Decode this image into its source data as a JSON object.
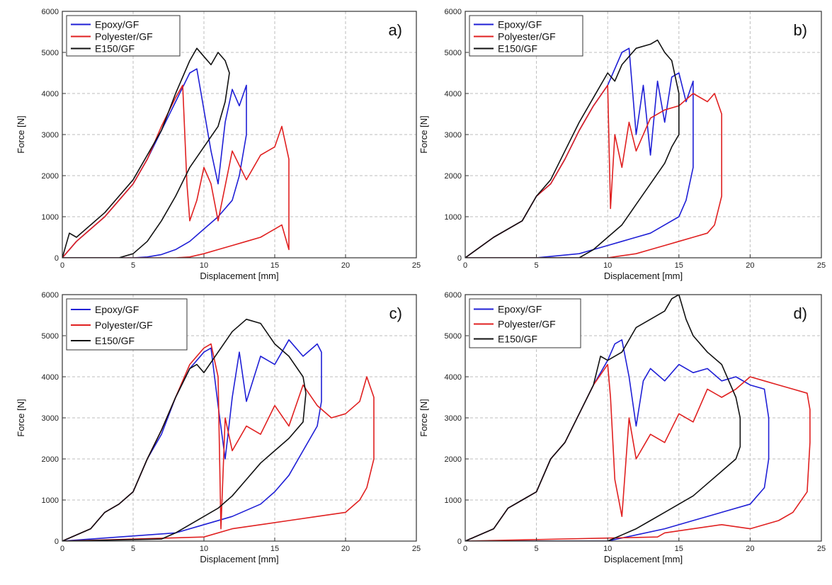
{
  "chart_data": [
    {
      "type": "line",
      "panel_label": "a)",
      "xlabel": "Displacement [mm]",
      "ylabel": "Force [N]",
      "xlim": [
        0,
        25
      ],
      "ylim": [
        0,
        6000
      ],
      "xticks": [
        "0",
        "5",
        "10",
        "15",
        "20",
        "25"
      ],
      "yticks": [
        "0",
        "1000",
        "2000",
        "3000",
        "4000",
        "5000",
        "6000"
      ],
      "grid": true,
      "legend_position": "top-left",
      "series": [
        {
          "name": "Epoxy/GF",
          "color": "#1f1fd6",
          "x": [
            0,
            1,
            2,
            3,
            4,
            5,
            6,
            7,
            8,
            9,
            9.5,
            10,
            10.5,
            11,
            11.5,
            12,
            12.5,
            13,
            13,
            12.5,
            12,
            11,
            10,
            9,
            8,
            7,
            6,
            5,
            4,
            3,
            2,
            0
          ],
          "y": [
            0,
            400,
            700,
            1000,
            1400,
            1800,
            2400,
            3100,
            3800,
            4500,
            4600,
            3600,
            2600,
            1800,
            3300,
            4100,
            3700,
            4200,
            3000,
            2000,
            1400,
            1000,
            700,
            400,
            200,
            80,
            20,
            0,
            0,
            0,
            0,
            0
          ]
        },
        {
          "name": "Polyester/GF",
          "color": "#e02020",
          "x": [
            0,
            1,
            2,
            3,
            4,
            5,
            6,
            7,
            8,
            8.5,
            8.8,
            9,
            9.5,
            10,
            10.5,
            11,
            12,
            13,
            14,
            15,
            15.5,
            16,
            16,
            15.5,
            15,
            14,
            13,
            12,
            11,
            10,
            9,
            8,
            0
          ],
          "y": [
            0,
            400,
            700,
            1000,
            1400,
            1800,
            2400,
            3200,
            3900,
            4200,
            1800,
            900,
            1400,
            2200,
            1800,
            900,
            2600,
            1900,
            2500,
            2700,
            3200,
            2400,
            200,
            800,
            700,
            500,
            400,
            300,
            200,
            100,
            20,
            0,
            0
          ]
        },
        {
          "name": "E150/GF",
          "color": "#111111",
          "x": [
            0,
            0.5,
            1,
            2,
            3,
            4,
            5,
            6,
            7,
            8,
            9,
            9.5,
            10,
            10.5,
            11,
            11.5,
            11.8,
            11.5,
            11,
            10,
            9,
            8,
            7,
            6,
            5,
            4,
            0
          ],
          "y": [
            0,
            600,
            500,
            800,
            1100,
            1500,
            1900,
            2500,
            3100,
            4000,
            4800,
            5100,
            4900,
            4700,
            5000,
            4800,
            4500,
            3800,
            3200,
            2700,
            2200,
            1500,
            900,
            400,
            100,
            0,
            0
          ]
        }
      ]
    },
    {
      "type": "line",
      "panel_label": "b)",
      "xlabel": "Displacement [mm]",
      "ylabel": "Force [N]",
      "xlim": [
        0,
        25
      ],
      "ylim": [
        0,
        6000
      ],
      "xticks": [
        "0",
        "5",
        "10",
        "15",
        "20",
        "25"
      ],
      "yticks": [
        "0",
        "1000",
        "2000",
        "3000",
        "4000",
        "5000",
        "6000"
      ],
      "grid": true,
      "legend_position": "top-left",
      "series": [
        {
          "name": "Epoxy/GF",
          "color": "#1f1fd6",
          "x": [
            0,
            2,
            4,
            5,
            6,
            7,
            8,
            9,
            10,
            11,
            11.5,
            12,
            12.5,
            13,
            13.5,
            14,
            14.5,
            15,
            15.5,
            16,
            16,
            15.5,
            15,
            14,
            13,
            12,
            11,
            10,
            9,
            8,
            5,
            0
          ],
          "y": [
            0,
            500,
            900,
            1500,
            1800,
            2400,
            3100,
            3700,
            4200,
            5000,
            5100,
            3000,
            4200,
            2500,
            4300,
            3300,
            4400,
            4500,
            3800,
            4300,
            2200,
            1400,
            1000,
            800,
            600,
            500,
            400,
            300,
            200,
            100,
            0,
            0
          ]
        },
        {
          "name": "Polyester/GF",
          "color": "#e02020",
          "x": [
            0,
            2,
            4,
            5,
            6,
            7,
            8,
            9,
            10,
            10.2,
            10.5,
            11,
            11.5,
            12,
            13,
            14,
            15,
            16,
            17,
            17.5,
            18,
            18,
            17.5,
            17,
            16,
            15,
            14,
            13,
            12,
            11,
            10,
            0
          ],
          "y": [
            0,
            500,
            900,
            1500,
            1800,
            2400,
            3100,
            3700,
            4200,
            1200,
            3000,
            2200,
            3300,
            2600,
            3400,
            3600,
            3700,
            4000,
            3800,
            4000,
            3500,
            1500,
            800,
            600,
            500,
            400,
            300,
            200,
            100,
            50,
            0,
            0
          ]
        },
        {
          "name": "E150/GF",
          "color": "#111111",
          "x": [
            0,
            2,
            4,
            5,
            6,
            7,
            8,
            9,
            10,
            10.5,
            11,
            12,
            13,
            13.5,
            14,
            14.5,
            15,
            15,
            14.5,
            14,
            13,
            12,
            11,
            10,
            9,
            8,
            0
          ],
          "y": [
            0,
            500,
            900,
            1500,
            1900,
            2600,
            3300,
            3900,
            4500,
            4300,
            4700,
            5100,
            5200,
            5300,
            5000,
            4800,
            4000,
            3000,
            2700,
            2300,
            1800,
            1300,
            800,
            500,
            200,
            0,
            0
          ]
        }
      ]
    },
    {
      "type": "line",
      "panel_label": "c)",
      "xlabel": "Displacement [mm]",
      "ylabel": "Force [N]",
      "xlim": [
        0,
        25
      ],
      "ylim": [
        0,
        6000
      ],
      "xticks": [
        "0",
        "5",
        "10",
        "15",
        "20",
        "25"
      ],
      "yticks": [
        "0",
        "1000",
        "2000",
        "3000",
        "4000",
        "5000",
        "6000"
      ],
      "grid": true,
      "legend_position": "top-left",
      "series": [
        {
          "name": "Epoxy/GF",
          "color": "#1f1fd6",
          "x": [
            0,
            2,
            3,
            4,
            5,
            6,
            7,
            8,
            9,
            10,
            10.5,
            11,
            11.5,
            12,
            12.5,
            13,
            14,
            15,
            16,
            17,
            18,
            18.3,
            18.3,
            18,
            17,
            16,
            15,
            14,
            12,
            10,
            8,
            0
          ],
          "y": [
            0,
            300,
            700,
            900,
            1200,
            2000,
            2600,
            3500,
            4200,
            4600,
            4700,
            3300,
            2000,
            3500,
            4600,
            3400,
            4500,
            4300,
            4900,
            4500,
            4800,
            4600,
            3400,
            2800,
            2200,
            1600,
            1200,
            900,
            600,
            400,
            200,
            0
          ]
        },
        {
          "name": "Polyester/GF",
          "color": "#e02020",
          "x": [
            0,
            2,
            3,
            4,
            5,
            6,
            7,
            8,
            9,
            10,
            10.5,
            11,
            11.2,
            11.5,
            12,
            13,
            14,
            15,
            16,
            17,
            18,
            19,
            20,
            21,
            21.5,
            22,
            22,
            21.5,
            21,
            20,
            18,
            16,
            14,
            12,
            10,
            0
          ],
          "y": [
            0,
            300,
            700,
            900,
            1200,
            2000,
            2700,
            3500,
            4300,
            4700,
            4800,
            4000,
            300,
            3000,
            2200,
            2800,
            2600,
            3300,
            2800,
            3800,
            3300,
            3000,
            3100,
            3400,
            4000,
            3500,
            2000,
            1300,
            1000,
            700,
            600,
            500,
            400,
            300,
            100,
            0
          ]
        },
        {
          "name": "E150/GF",
          "color": "#111111",
          "x": [
            0,
            2,
            3,
            4,
            5,
            6,
            7,
            8,
            9,
            9.5,
            10,
            11,
            12,
            13,
            14,
            15,
            16,
            17,
            17.2,
            17,
            16,
            15,
            14,
            13,
            12,
            11,
            10,
            9,
            8,
            7,
            0
          ],
          "y": [
            0,
            300,
            700,
            900,
            1200,
            2000,
            2700,
            3500,
            4200,
            4300,
            4100,
            4600,
            5100,
            5400,
            5300,
            4800,
            4500,
            4000,
            3600,
            2900,
            2500,
            2200,
            1900,
            1500,
            1100,
            800,
            600,
            400,
            200,
            50,
            0
          ]
        }
      ]
    },
    {
      "type": "line",
      "panel_label": "d)",
      "xlabel": "Displacement [mm]",
      "ylabel": "Force [N]",
      "xlim": [
        0,
        25
      ],
      "ylim": [
        0,
        6000
      ],
      "xticks": [
        "0",
        "5",
        "10",
        "15",
        "20",
        "25"
      ],
      "yticks": [
        "0",
        "1000",
        "2000",
        "3000",
        "4000",
        "5000",
        "6000"
      ],
      "grid": true,
      "legend_position": "top-left",
      "series": [
        {
          "name": "Epoxy/GF",
          "color": "#1f1fd6",
          "x": [
            0,
            2,
            3,
            4,
            5,
            6,
            7,
            8,
            9,
            10,
            10.5,
            11,
            11.5,
            12,
            12.5,
            13,
            14,
            15,
            16,
            17,
            18,
            19,
            20,
            21,
            21.3,
            21.3,
            21,
            20,
            18,
            16,
            14,
            12,
            10,
            0
          ],
          "y": [
            0,
            300,
            800,
            1000,
            1200,
            2000,
            2400,
            3100,
            3800,
            4400,
            4800,
            4900,
            4000,
            2800,
            3900,
            4200,
            3900,
            4300,
            4100,
            4200,
            3900,
            4000,
            3800,
            3700,
            3000,
            2000,
            1300,
            900,
            700,
            500,
            300,
            150,
            0,
            0
          ]
        },
        {
          "name": "Polyester/GF",
          "color": "#e02020",
          "x": [
            0,
            2,
            3,
            4,
            5,
            6,
            7,
            8,
            9,
            10,
            10.2,
            10.5,
            11,
            11.5,
            12,
            13,
            14,
            15,
            16,
            17,
            18,
            19,
            20,
            21,
            22,
            23,
            24,
            24.2,
            24.2,
            24,
            23,
            22,
            20,
            18,
            16,
            14,
            13.5,
            0
          ],
          "y": [
            0,
            300,
            800,
            1000,
            1200,
            2000,
            2400,
            3100,
            3800,
            4300,
            3500,
            1500,
            600,
            3000,
            2000,
            2600,
            2400,
            3100,
            2900,
            3700,
            3500,
            3700,
            4000,
            3900,
            3800,
            3700,
            3600,
            3200,
            2400,
            1200,
            700,
            500,
            300,
            400,
            300,
            200,
            100,
            0
          ]
        },
        {
          "name": "E150/GF",
          "color": "#111111",
          "x": [
            0,
            2,
            3,
            4,
            5,
            6,
            7,
            8,
            9,
            9.5,
            10,
            11,
            12,
            13,
            14,
            14.5,
            15,
            15.5,
            16,
            17,
            18,
            19,
            19.3,
            19.3,
            19,
            18,
            17,
            16,
            15,
            14,
            13,
            12,
            11,
            10,
            0
          ],
          "y": [
            0,
            300,
            800,
            1000,
            1200,
            2000,
            2400,
            3100,
            3800,
            4500,
            4400,
            4600,
            5200,
            5400,
            5600,
            5900,
            6000,
            5400,
            5000,
            4600,
            4300,
            3500,
            3000,
            2300,
            2000,
            1700,
            1400,
            1100,
            900,
            700,
            500,
            300,
            150,
            0,
            0
          ]
        }
      ]
    }
  ]
}
